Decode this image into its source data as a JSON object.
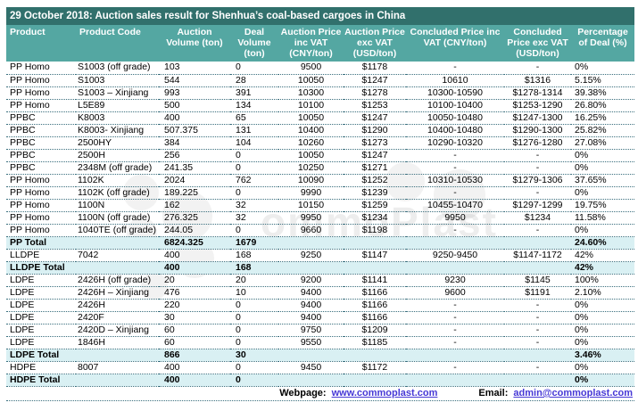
{
  "title": "29 October 2018: Auction sales result for Shenhua’s coal-based cargoes in China",
  "colors": {
    "title_bar": "#31706C",
    "header_row": "#54A7A2",
    "total_row_highlight": "#D9F0F3",
    "row_divider_dots": "#3A6F7E",
    "link": "#4638D6"
  },
  "table": {
    "columns": [
      "Product",
      "Product Code",
      "Auction Volume (ton)",
      "Deal Volume (ton)",
      "Auction Price inc VAT (CNY/ton)",
      "Auction Price exc VAT (USD/ton)",
      "Concluded Price inc VAT (CNY/ton)",
      "Concluded Price exc VAT (USD/ton)",
      "Percentage of Deal (%)"
    ],
    "column_keys": [
      "product",
      "product-code",
      "auction-volume",
      "deal-volume",
      "auction-price-inc-vat",
      "auction-price-exc-vat",
      "concluded-price-inc-vat",
      "concluded-price-exc-vat",
      "percentage-of-deal"
    ],
    "rows": [
      {
        "total": false,
        "cells": [
          "PP Homo",
          "S1003 (off grade)",
          "103",
          "0",
          "9500",
          "$1178",
          "-",
          "-",
          "0%"
        ]
      },
      {
        "total": false,
        "cells": [
          "PP Homo",
          "S1003",
          "544",
          "28",
          "10050",
          "$1247",
          "10610",
          "$1316",
          "5.15%"
        ]
      },
      {
        "total": false,
        "cells": [
          "PP Homo",
          "S1003 – Xinjiang",
          "993",
          "391",
          "10300",
          "$1278",
          "10300-10590",
          "$1278-1314",
          "39.38%"
        ]
      },
      {
        "total": false,
        "cells": [
          "PP Homo",
          "L5E89",
          "500",
          "134",
          "10100",
          "$1253",
          "10100-10400",
          "$1253-1290",
          "26.80%"
        ]
      },
      {
        "total": false,
        "cells": [
          "PPBC",
          "K8003",
          "400",
          "65",
          "10050",
          "$1247",
          "10050-10480",
          "$1247-1300",
          "16.25%"
        ]
      },
      {
        "total": false,
        "cells": [
          "PPBC",
          "K8003- Xinjiang",
          "507.375",
          "131",
          "10400",
          "$1290",
          "10400-10480",
          "$1290-1300",
          "25.82%"
        ]
      },
      {
        "total": false,
        "cells": [
          "PPBC",
          "2500HY",
          "384",
          "104",
          "10260",
          "$1273",
          "10290-10320",
          "$1276-1280",
          "27.08%"
        ]
      },
      {
        "total": false,
        "cells": [
          "PPBC",
          "2500H",
          "256",
          "0",
          "10050",
          "$1247",
          "-",
          "-",
          "0%"
        ]
      },
      {
        "total": false,
        "cells": [
          "PPBC",
          "2348M (off grade)",
          "241.35",
          "0",
          "10250",
          "$1271",
          "-",
          "-",
          "0%"
        ]
      },
      {
        "total": false,
        "cells": [
          "PP Homo",
          "1102K",
          "2024",
          "762",
          "10090",
          "$1252",
          "10310-10530",
          "$1279-1306",
          "37.65%"
        ]
      },
      {
        "total": false,
        "cells": [
          "PP Homo",
          "1102K (off grade)",
          "189.225",
          "0",
          "9990",
          "$1239",
          "-",
          "-",
          "0%"
        ]
      },
      {
        "total": false,
        "cells": [
          "PP Homo",
          "1100N",
          "162",
          "32",
          "10150",
          "$1259",
          "10455-10470",
          "$1297-1299",
          "19.75%"
        ]
      },
      {
        "total": false,
        "cells": [
          "PP Homo",
          "1100N (off grade)",
          "276.325",
          "32",
          "9950",
          "$1234",
          "9950",
          "$1234",
          "11.58%"
        ]
      },
      {
        "total": false,
        "cells": [
          "PP Homo",
          "1040TE (off grade)",
          "244.05",
          "0",
          "9660",
          "$1198",
          "-",
          "-",
          "0%"
        ]
      },
      {
        "total": true,
        "cells": [
          "PP Total",
          "",
          "6824.325",
          "1679",
          "",
          "",
          "",
          "",
          "24.60%"
        ]
      },
      {
        "total": false,
        "cells": [
          "LLDPE",
          "7042",
          "400",
          "168",
          "9250",
          "$1147",
          "9250-9450",
          "$1147-1172",
          "42%"
        ]
      },
      {
        "total": true,
        "cells": [
          "LLDPE Total",
          "",
          "400",
          "168",
          "",
          "",
          "",
          "",
          "42%"
        ]
      },
      {
        "total": false,
        "cells": [
          "LDPE",
          "2426H (off grade)",
          "20",
          "20",
          "9200",
          "$1141",
          "9230",
          "$1145",
          "100%"
        ]
      },
      {
        "total": false,
        "cells": [
          "LDPE",
          "2426H – Xinjiang",
          "476",
          "10",
          "9400",
          "$1166",
          "9600",
          "$1191",
          "2.10%"
        ]
      },
      {
        "total": false,
        "cells": [
          "LDPE",
          "2426H",
          "220",
          "0",
          "9400",
          "$1166",
          "-",
          "-",
          "0%"
        ]
      },
      {
        "total": false,
        "cells": [
          "LDPE",
          "2420F",
          "30",
          "0",
          "9400",
          "$1166",
          "-",
          "-",
          "0%"
        ]
      },
      {
        "total": false,
        "cells": [
          "LDPE",
          "2420D – Xinjiang",
          "60",
          "0",
          "9750",
          "$1209",
          "-",
          "-",
          "0%"
        ]
      },
      {
        "total": false,
        "cells": [
          "LDPE",
          "1846H",
          "60",
          "0",
          "9550",
          "$1185",
          "-",
          "-",
          "0%"
        ]
      },
      {
        "total": true,
        "cells": [
          "LDPE Total",
          "",
          "866",
          "30",
          "",
          "",
          "",
          "",
          "3.46%"
        ]
      },
      {
        "total": false,
        "cells": [
          "HDPE",
          "8007",
          "400",
          "0",
          "9450",
          "$1172",
          "-",
          "-",
          "0%"
        ]
      },
      {
        "total": true,
        "cells": [
          "HDPE Total",
          "",
          "400",
          "0",
          "",
          "",
          "",
          "",
          "0%"
        ]
      }
    ]
  },
  "footer": {
    "webpage_label": "Webpage:",
    "webpage_url": "www.commoplast.com",
    "email_label": "Email:",
    "email_value": "admin@commoplast.com"
  },
  "watermark": {
    "big_text": "ommoPlast",
    "small_text": "commoplast Insight"
  }
}
